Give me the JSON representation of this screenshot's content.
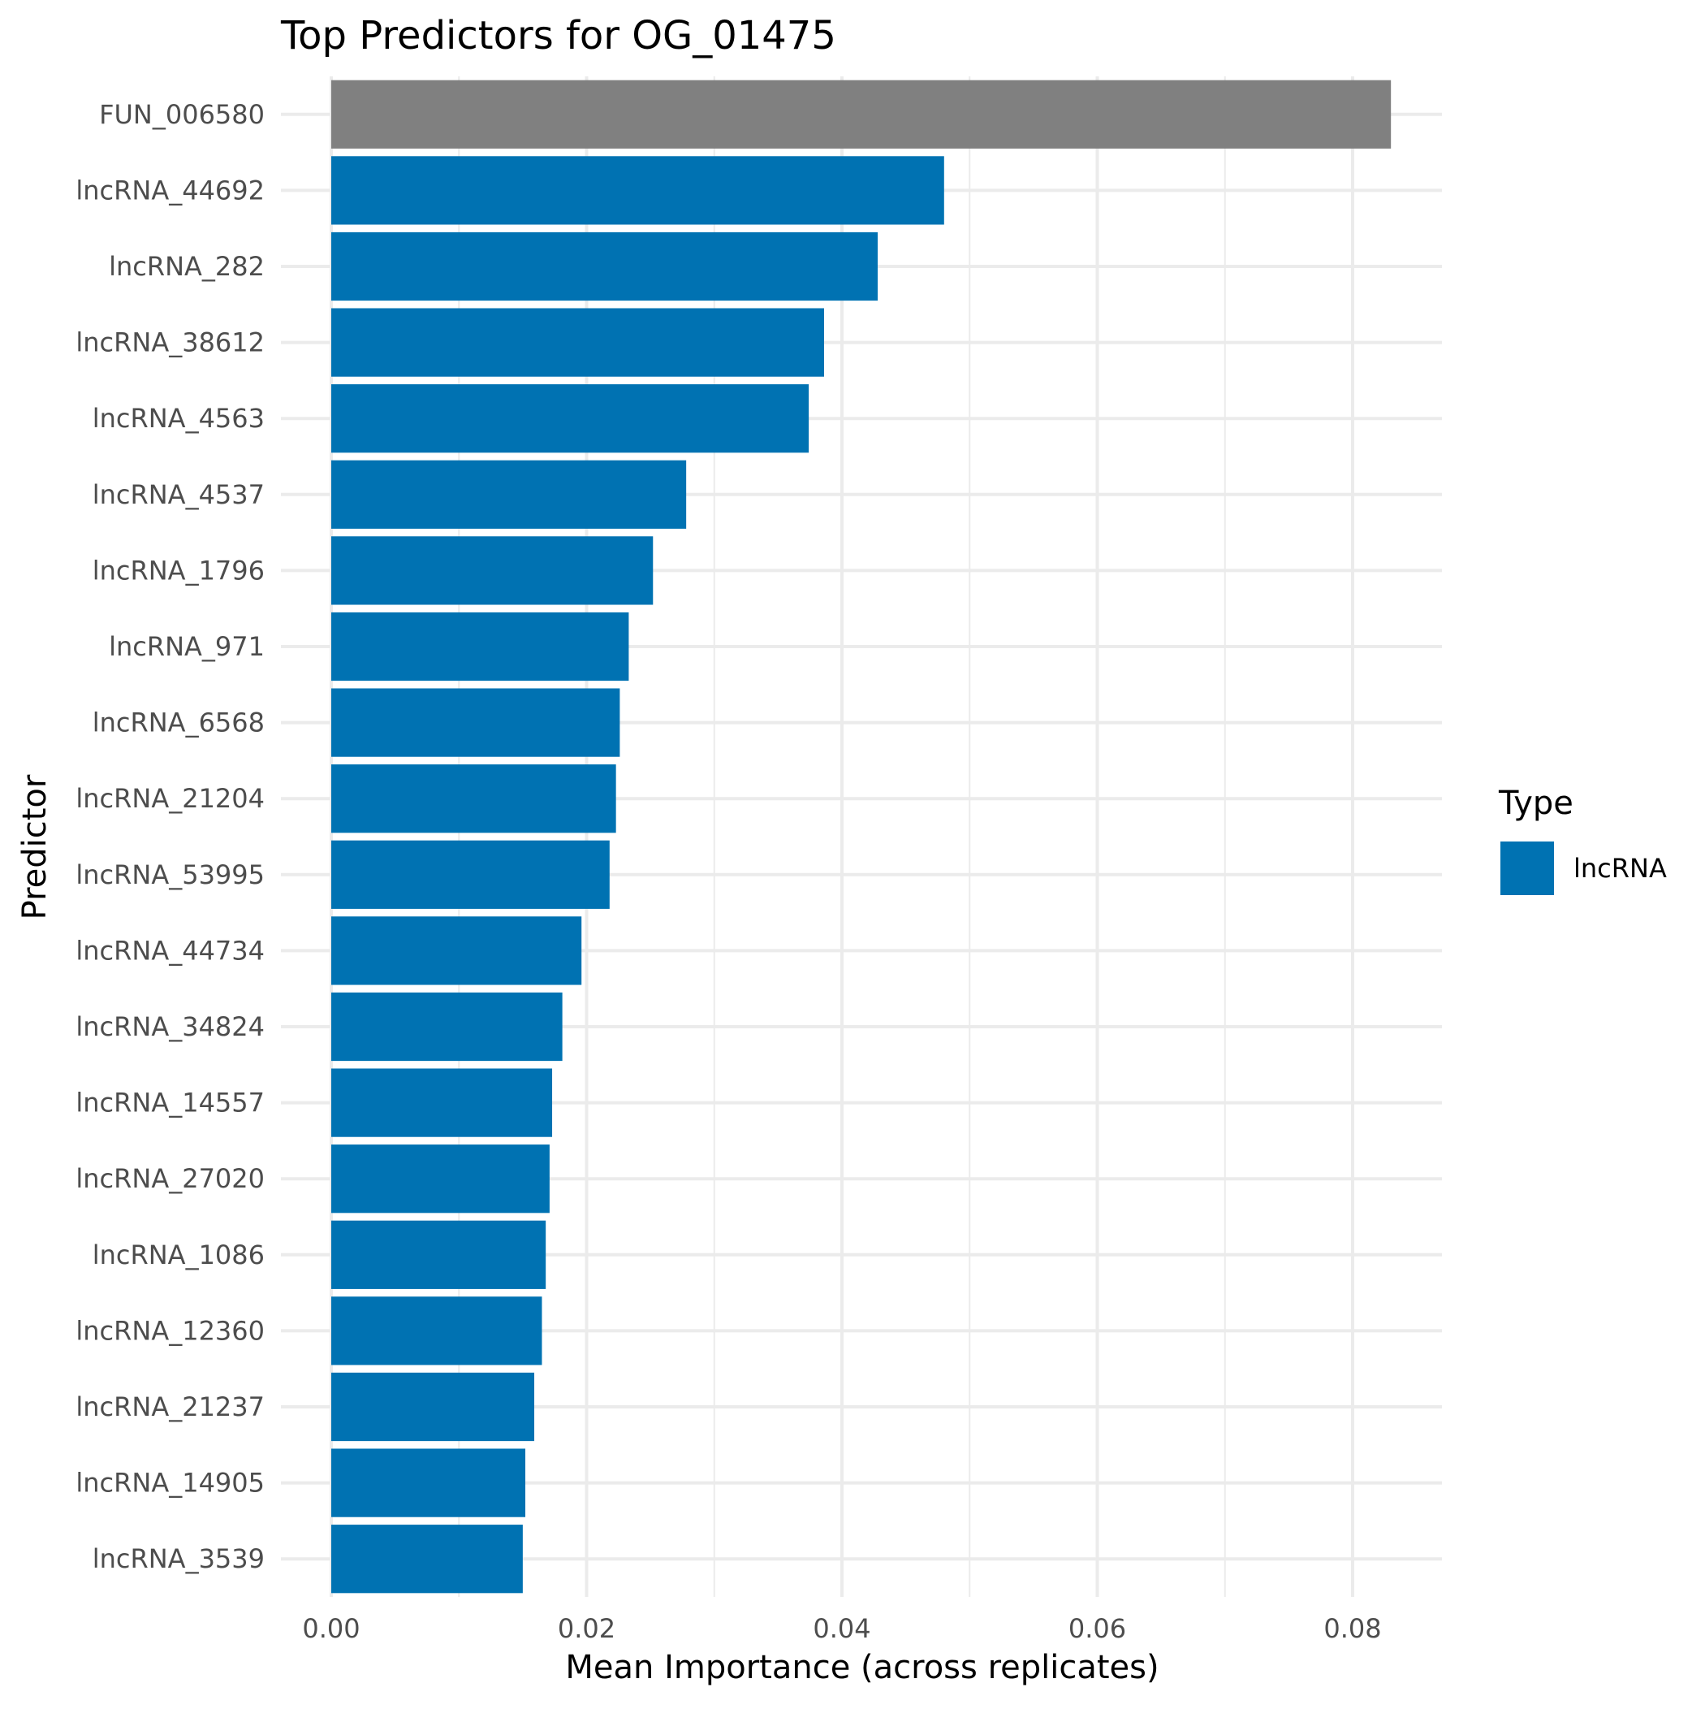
{
  "chart_data": {
    "type": "bar",
    "orientation": "horizontal",
    "title": "Top Predictors for OG_01475",
    "xlabel": "Mean Importance (across replicates)",
    "ylabel": "Predictor",
    "xlim": [
      0,
      0.087
    ],
    "xticks": [
      0,
      0.02,
      0.04,
      0.06,
      0.08
    ],
    "xtick_labels": [
      "0.00",
      "0.02",
      "0.04",
      "0.06",
      "0.08"
    ],
    "grid": true,
    "categories": [
      "FUN_006580",
      "lncRNA_44692",
      "lncRNA_282",
      "lncRNA_38612",
      "lncRNA_4563",
      "lncRNA_4537",
      "lncRNA_1796",
      "lncRNA_971",
      "lncRNA_6568",
      "lncRNA_21204",
      "lncRNA_53995",
      "lncRNA_44734",
      "lncRNA_34824",
      "lncRNA_14557",
      "lncRNA_27020",
      "lncRNA_1086",
      "lncRNA_12360",
      "lncRNA_21237",
      "lncRNA_14905",
      "lncRNA_3539"
    ],
    "values": [
      0.083,
      0.048,
      0.0428,
      0.0386,
      0.0374,
      0.0278,
      0.0252,
      0.0233,
      0.0226,
      0.0223,
      0.0218,
      0.0196,
      0.0181,
      0.0173,
      0.0171,
      0.0168,
      0.0165,
      0.0159,
      0.0152,
      0.015
    ],
    "types": [
      "FUN",
      "lncRNA",
      "lncRNA",
      "lncRNA",
      "lncRNA",
      "lncRNA",
      "lncRNA",
      "lncRNA",
      "lncRNA",
      "lncRNA",
      "lncRNA",
      "lncRNA",
      "lncRNA",
      "lncRNA",
      "lncRNA",
      "lncRNA",
      "lncRNA",
      "lncRNA",
      "lncRNA",
      "lncRNA"
    ],
    "colors": {
      "FUN": "#808080",
      "lncRNA": "#0072B2"
    },
    "legend": {
      "title": "Type",
      "position": "right",
      "entries": [
        {
          "label": "lncRNA",
          "color": "#0072B2"
        }
      ]
    }
  }
}
